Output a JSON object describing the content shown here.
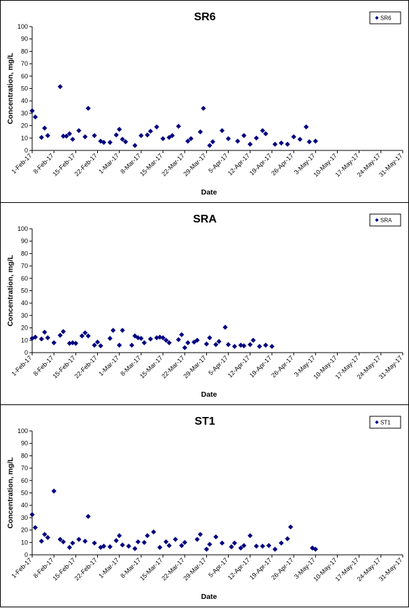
{
  "colors": {
    "marker": "#000080",
    "axis": "#000000",
    "background": "#ffffff"
  },
  "chart_data": [
    {
      "type": "scatter",
      "title": "SR6",
      "xlabel": "Date",
      "ylabel": "Concentration, mg/L",
      "ylim": [
        0,
        100
      ],
      "yticks": [
        0,
        10,
        20,
        30,
        40,
        50,
        60,
        70,
        80,
        90,
        100
      ],
      "xlim": [
        "2017-02-01",
        "2017-05-31"
      ],
      "xticks": [
        "1-Feb-17",
        "8-Feb-17",
        "15-Feb-17",
        "22-Feb-17",
        "1-Mar-17",
        "8-Mar-17",
        "15-Mar-17",
        "22-Mar-17",
        "29-Mar-17",
        "5-Apr-17",
        "12-Apr-17",
        "19-Apr-17",
        "26-Apr-17",
        "3-May-17",
        "10-May-17",
        "17-May-17",
        "24-May-17",
        "31-May-17"
      ],
      "legend_position": "top-right",
      "grid": false,
      "series": [
        {
          "name": "SR6",
          "marker": "diamond",
          "points": [
            [
              "2017-02-01",
              32
            ],
            [
              "2017-02-02",
              27
            ],
            [
              "2017-02-04",
              10.5
            ],
            [
              "2017-02-05",
              18
            ],
            [
              "2017-02-06",
              12
            ],
            [
              "2017-02-10",
              51.5
            ],
            [
              "2017-02-11",
              11.5
            ],
            [
              "2017-02-12",
              11.5
            ],
            [
              "2017-02-13",
              13.5
            ],
            [
              "2017-02-14",
              9
            ],
            [
              "2017-02-16",
              16
            ],
            [
              "2017-02-18",
              11
            ],
            [
              "2017-02-19",
              34
            ],
            [
              "2017-02-21",
              12
            ],
            [
              "2017-02-23",
              7.5
            ],
            [
              "2017-02-24",
              6.5
            ],
            [
              "2017-02-26",
              6.5
            ],
            [
              "2017-02-28",
              12.5
            ],
            [
              "2017-03-01",
              17
            ],
            [
              "2017-03-02",
              9
            ],
            [
              "2017-03-03",
              7
            ],
            [
              "2017-03-06",
              4
            ],
            [
              "2017-03-08",
              12
            ],
            [
              "2017-03-10",
              12.5
            ],
            [
              "2017-03-11",
              15.5
            ],
            [
              "2017-03-13",
              19
            ],
            [
              "2017-03-15",
              9.5
            ],
            [
              "2017-03-17",
              10.5
            ],
            [
              "2017-03-18",
              12
            ],
            [
              "2017-03-20",
              19.5
            ],
            [
              "2017-03-23",
              7.5
            ],
            [
              "2017-03-24",
              9.5
            ],
            [
              "2017-03-27",
              15
            ],
            [
              "2017-03-28",
              34
            ],
            [
              "2017-03-30",
              4
            ],
            [
              "2017-03-31",
              7
            ],
            [
              "2017-04-03",
              16
            ],
            [
              "2017-04-05",
              9.5
            ],
            [
              "2017-04-08",
              7.5
            ],
            [
              "2017-04-10",
              12
            ],
            [
              "2017-04-12",
              5
            ],
            [
              "2017-04-14",
              10
            ],
            [
              "2017-04-16",
              16
            ],
            [
              "2017-04-17",
              13.5
            ],
            [
              "2017-04-20",
              5
            ],
            [
              "2017-04-22",
              6
            ],
            [
              "2017-04-24",
              5
            ],
            [
              "2017-04-26",
              11
            ],
            [
              "2017-04-28",
              9
            ],
            [
              "2017-04-30",
              19
            ],
            [
              "2017-05-01",
              7
            ],
            [
              "2017-05-03",
              7.5
            ]
          ]
        }
      ]
    },
    {
      "type": "scatter",
      "title": "SRA",
      "xlabel": "Date",
      "ylabel": "Concentration, mg/L",
      "ylim": [
        0,
        100
      ],
      "yticks": [
        0,
        10,
        20,
        30,
        40,
        50,
        60,
        70,
        80,
        90,
        100
      ],
      "xlim": [
        "2017-02-01",
        "2017-05-31"
      ],
      "xticks": [
        "1-Feb-17",
        "8-Feb-17",
        "15-Feb-17",
        "22-Feb-17",
        "1-Mar-17",
        "8-Mar-17",
        "15-Mar-17",
        "22-Mar-17",
        "29-Mar-17",
        "5-Apr-17",
        "12-Apr-17",
        "19-Apr-17",
        "26-Apr-17",
        "3-May-17",
        "10-May-17",
        "17-May-17",
        "24-May-17",
        "31-May-17"
      ],
      "legend_position": "top-right",
      "grid": false,
      "series": [
        {
          "name": "SRA",
          "marker": "diamond",
          "points": [
            [
              "2017-02-01",
              11.5
            ],
            [
              "2017-02-02",
              12.5
            ],
            [
              "2017-02-04",
              11
            ],
            [
              "2017-02-05",
              16.5
            ],
            [
              "2017-02-06",
              12
            ],
            [
              "2017-02-08",
              8
            ],
            [
              "2017-02-10",
              14
            ],
            [
              "2017-02-11",
              17
            ],
            [
              "2017-02-13",
              7.5
            ],
            [
              "2017-02-14",
              8
            ],
            [
              "2017-02-15",
              7.5
            ],
            [
              "2017-02-17",
              13.5
            ],
            [
              "2017-02-18",
              16
            ],
            [
              "2017-02-19",
              13.5
            ],
            [
              "2017-02-21",
              6
            ],
            [
              "2017-02-22",
              8.5
            ],
            [
              "2017-02-23",
              5.5
            ],
            [
              "2017-02-26",
              11.5
            ],
            [
              "2017-02-27",
              18
            ],
            [
              "2017-03-01",
              6
            ],
            [
              "2017-03-02",
              18
            ],
            [
              "2017-03-05",
              6
            ],
            [
              "2017-03-06",
              13.5
            ],
            [
              "2017-03-07",
              12
            ],
            [
              "2017-03-08",
              11.5
            ],
            [
              "2017-03-09",
              8
            ],
            [
              "2017-03-11",
              11
            ],
            [
              "2017-03-13",
              12
            ],
            [
              "2017-03-14",
              12.5
            ],
            [
              "2017-03-15",
              12
            ],
            [
              "2017-03-16",
              10
            ],
            [
              "2017-03-17",
              8
            ],
            [
              "2017-03-20",
              10.5
            ],
            [
              "2017-03-21",
              14.5
            ],
            [
              "2017-03-22",
              4
            ],
            [
              "2017-03-23",
              8
            ],
            [
              "2017-03-25",
              8.5
            ],
            [
              "2017-03-26",
              10
            ],
            [
              "2017-03-29",
              7
            ],
            [
              "2017-03-30",
              12
            ],
            [
              "2017-04-01",
              6.5
            ],
            [
              "2017-04-02",
              9
            ],
            [
              "2017-04-04",
              20.5
            ],
            [
              "2017-04-05",
              6.5
            ],
            [
              "2017-04-07",
              5
            ],
            [
              "2017-04-09",
              6
            ],
            [
              "2017-04-10",
              5.5
            ],
            [
              "2017-04-12",
              6.5
            ],
            [
              "2017-04-13",
              10
            ],
            [
              "2017-04-15",
              5
            ],
            [
              "2017-04-17",
              6
            ],
            [
              "2017-04-19",
              5
            ]
          ]
        }
      ]
    },
    {
      "type": "scatter",
      "title": "ST1",
      "xlabel": "Date",
      "ylabel": "Concentration, mg/L",
      "ylim": [
        0,
        100
      ],
      "yticks": [
        0,
        10,
        20,
        30,
        40,
        50,
        60,
        70,
        80,
        90,
        100
      ],
      "xlim": [
        "2017-02-01",
        "2017-05-31"
      ],
      "xticks": [
        "1-Feb-17",
        "8-Feb-17",
        "15-Feb-17",
        "22-Feb-17",
        "1-Mar-17",
        "8-Mar-17",
        "15-Mar-17",
        "22-Mar-17",
        "29-Mar-17",
        "5-Apr-17",
        "12-Apr-17",
        "19-Apr-17",
        "26-Apr-17",
        "3-May-17",
        "10-May-17",
        "17-May-17",
        "24-May-17",
        "31-May-17"
      ],
      "legend_position": "top-right",
      "grid": false,
      "series": [
        {
          "name": "ST1",
          "marker": "diamond",
          "points": [
            [
              "2017-02-01",
              32.5
            ],
            [
              "2017-02-02",
              22
            ],
            [
              "2017-02-04",
              11
            ],
            [
              "2017-02-05",
              16.5
            ],
            [
              "2017-02-06",
              14
            ],
            [
              "2017-02-08",
              51.5
            ],
            [
              "2017-02-10",
              12.5
            ],
            [
              "2017-02-11",
              10.5
            ],
            [
              "2017-02-13",
              6
            ],
            [
              "2017-02-14",
              9.5
            ],
            [
              "2017-02-16",
              12.5
            ],
            [
              "2017-02-18",
              11
            ],
            [
              "2017-02-19",
              31
            ],
            [
              "2017-02-21",
              9.5
            ],
            [
              "2017-02-23",
              6
            ],
            [
              "2017-02-24",
              7
            ],
            [
              "2017-02-26",
              6.5
            ],
            [
              "2017-02-28",
              11.5
            ],
            [
              "2017-03-01",
              15.5
            ],
            [
              "2017-03-02",
              8
            ],
            [
              "2017-03-04",
              7
            ],
            [
              "2017-03-06",
              5
            ],
            [
              "2017-03-07",
              10.5
            ],
            [
              "2017-03-09",
              10
            ],
            [
              "2017-03-10",
              15.5
            ],
            [
              "2017-03-12",
              18.5
            ],
            [
              "2017-03-14",
              6
            ],
            [
              "2017-03-16",
              10.5
            ],
            [
              "2017-03-17",
              7.5
            ],
            [
              "2017-03-19",
              12.5
            ],
            [
              "2017-03-21",
              7.5
            ],
            [
              "2017-03-22",
              10
            ],
            [
              "2017-03-26",
              12.5
            ],
            [
              "2017-03-27",
              16.5
            ],
            [
              "2017-03-29",
              4.5
            ],
            [
              "2017-03-30",
              8.5
            ],
            [
              "2017-04-01",
              14.5
            ],
            [
              "2017-04-03",
              9.5
            ],
            [
              "2017-04-06",
              6.5
            ],
            [
              "2017-04-07",
              9.5
            ],
            [
              "2017-04-09",
              5.5
            ],
            [
              "2017-04-10",
              7.5
            ],
            [
              "2017-04-12",
              15.5
            ],
            [
              "2017-04-14",
              7
            ],
            [
              "2017-04-16",
              7
            ],
            [
              "2017-04-18",
              7.5
            ],
            [
              "2017-04-20",
              4.5
            ],
            [
              "2017-04-22",
              9.5
            ],
            [
              "2017-04-24",
              13
            ],
            [
              "2017-04-25",
              22.5
            ],
            [
              "2017-05-02",
              5.5
            ],
            [
              "2017-05-03",
              4.5
            ]
          ]
        }
      ]
    }
  ]
}
